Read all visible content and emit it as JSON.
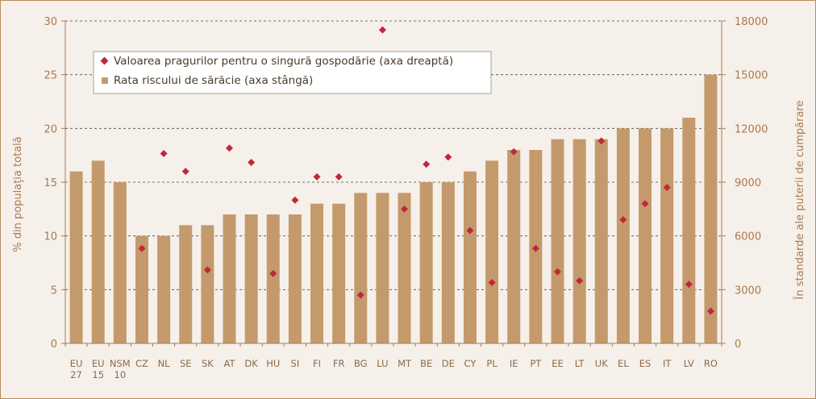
{
  "chart_data": {
    "type": "bar",
    "categories": [
      [
        "EU",
        "27"
      ],
      [
        "EU",
        "15"
      ],
      [
        "NSM",
        "10"
      ],
      [
        "CZ"
      ],
      [
        "NL"
      ],
      [
        "SE"
      ],
      [
        "SK"
      ],
      [
        "AT"
      ],
      [
        "DK"
      ],
      [
        "HU"
      ],
      [
        "SI"
      ],
      [
        "FI"
      ],
      [
        "FR"
      ],
      [
        "BG"
      ],
      [
        "LU"
      ],
      [
        "MT"
      ],
      [
        "BE"
      ],
      [
        "DE"
      ],
      [
        "CY"
      ],
      [
        "PL"
      ],
      [
        "IE"
      ],
      [
        "PT"
      ],
      [
        "EE"
      ],
      [
        "LT"
      ],
      [
        "UK"
      ],
      [
        "EL"
      ],
      [
        "ES"
      ],
      [
        "IT"
      ],
      [
        "LV"
      ],
      [
        "RO"
      ]
    ],
    "series": [
      {
        "name": "Rata riscului de sărăcie (axa stângă)",
        "type": "bar",
        "axis": "left",
        "color": "#c49a6c",
        "values": [
          16,
          17,
          15,
          10,
          10,
          11,
          11,
          12,
          12,
          12,
          12,
          13,
          13,
          14,
          14,
          14,
          15,
          15,
          16,
          17,
          18,
          18,
          19,
          19,
          19,
          20,
          20,
          20,
          21,
          25
        ]
      },
      {
        "name": "Valoarea pragurilor pentru o singură gospodărie (axa dreaptă)",
        "type": "scatter",
        "axis": "right",
        "color": "#c0283a",
        "values": [
          null,
          null,
          null,
          5300,
          10600,
          9600,
          4100,
          10900,
          10100,
          3900,
          8000,
          9300,
          9300,
          2700,
          17500,
          7500,
          10000,
          10400,
          6300,
          3400,
          10700,
          5300,
          4000,
          3500,
          11300,
          6900,
          7800,
          8700,
          3300,
          1800
        ]
      }
    ],
    "left_axis": {
      "label": "% din populaţia totală",
      "ylim": [
        0,
        30
      ],
      "ticks": [
        "0",
        "5",
        "10",
        "15",
        "20",
        "25",
        "30"
      ]
    },
    "right_axis": {
      "label": "În standarde ale puterii de cumpărare",
      "ylim": [
        0,
        18000
      ],
      "ticks": [
        "0",
        "3000",
        "6000",
        "9000",
        "12000",
        "15000",
        "18000"
      ]
    },
    "grid": "horizontal dashed",
    "legend_placement": "top-left",
    "colors": {
      "background": "#f6f0ea",
      "bar": "#c49a6c",
      "marker": "#c0283a",
      "axis": "#a97a4d",
      "grid": "#4a4a4a"
    }
  }
}
